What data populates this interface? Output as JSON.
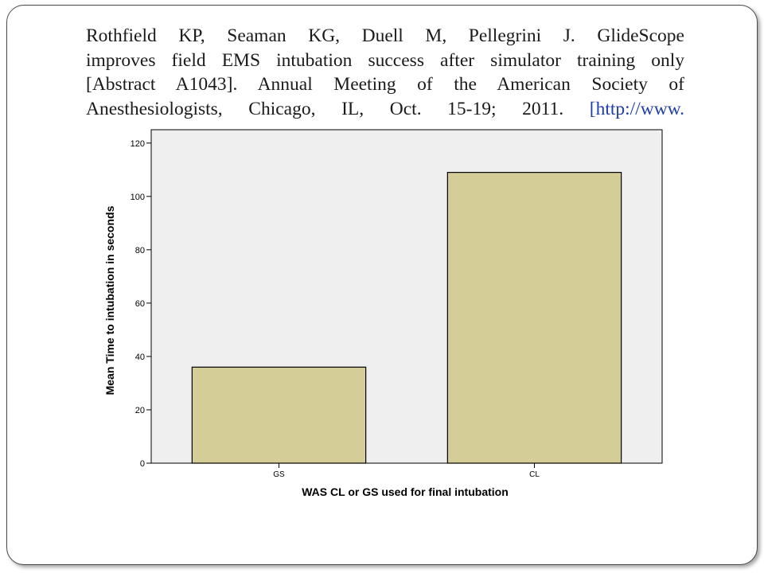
{
  "citation": {
    "lines": [
      "Rothfield KP, Seaman KG, Duell M, Pellegrini J. GlideScope",
      "improves field EMS intubation success after simulator training only",
      "[Abstract A1043]. Annual Meeting of the American Society of"
    ],
    "last_line_text": "Anesthesiologists, Chicago, IL, Oct. 15-19; 2011. ",
    "last_line_link": "[http://www."
  },
  "colors": {
    "bar_fill": "#d4cd98",
    "plot_background": "#efefef",
    "link": "#1f3ea8"
  },
  "chart_data": {
    "type": "bar",
    "categories": [
      "GS",
      "CL"
    ],
    "values": [
      36,
      109
    ],
    "xlabel": "WAS CL or GS used for final intubation",
    "ylabel": "Mean Time to intubation in seconds",
    "ylim": [
      0,
      125
    ],
    "yticks": [
      0,
      20,
      40,
      60,
      80,
      100,
      120
    ],
    "grid": false
  }
}
